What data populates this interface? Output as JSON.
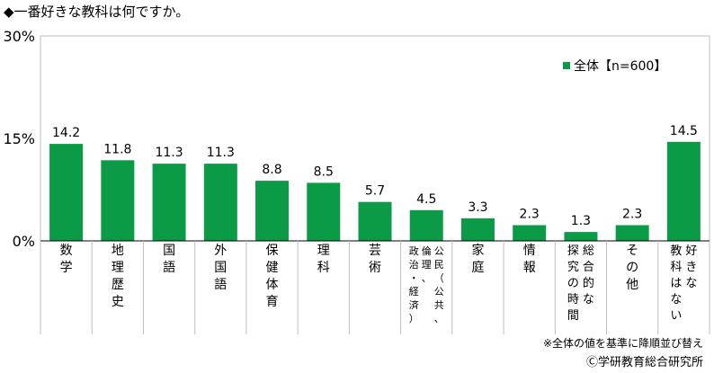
{
  "title": "◆一番好きな教科は何ですか。",
  "legend_label": "全体【n=600】",
  "note": "※全体の値を基準に降順並び替え",
  "credit": "Ⓒ学研教育総合研究所",
  "colors": {
    "bar": "#0b9a45",
    "grid": "#bfbfbf",
    "axis": "#000000"
  },
  "chart_data": {
    "type": "bar",
    "title": "一番好きな教科は何ですか。",
    "categories": [
      [
        "数",
        "学"
      ],
      [
        "地",
        "理",
        "歴",
        "史"
      ],
      [
        "国",
        "語"
      ],
      [
        "外",
        "国",
        "語"
      ],
      [
        "保",
        "健",
        "体",
        "育"
      ],
      [
        "理",
        "科"
      ],
      [
        "芸",
        "術"
      ],
      [
        [
          "公",
          "民",
          "（",
          "公",
          "共",
          "、"
        ],
        [
          "倫",
          "理",
          "、"
        ],
        [
          "政",
          "治",
          "・",
          "経",
          "済",
          "）"
        ]
      ],
      [
        "家",
        "庭"
      ],
      [
        "情",
        "報"
      ],
      [
        [
          "総",
          "合",
          "的",
          "な"
        ],
        [
          "探",
          "究",
          "の",
          "時",
          "間"
        ]
      ],
      [
        "そ",
        "の",
        "他"
      ],
      [
        [
          "好",
          "き",
          "な"
        ],
        [
          "教",
          "科",
          "は",
          "な",
          "い"
        ]
      ]
    ],
    "series": [
      {
        "name": "全体【n=600】",
        "values": [
          14.2,
          11.8,
          11.3,
          11.3,
          8.8,
          8.5,
          5.7,
          4.5,
          3.3,
          2.3,
          1.3,
          2.3,
          14.5
        ]
      }
    ],
    "value_labels": [
      "14.2",
      "11.8",
      "11.3",
      "11.3",
      "8.8",
      "8.5",
      "5.7",
      "4.5",
      "3.3",
      "2.3",
      "1.3",
      "2.3",
      "14.5"
    ],
    "ylim": [
      0,
      30
    ],
    "yticks": [
      "0%",
      "15%",
      "30%"
    ],
    "grid": false,
    "legend_position": "top-right"
  }
}
